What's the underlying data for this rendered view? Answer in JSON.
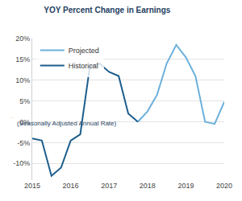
{
  "chart_data": {
    "type": "line",
    "title": "YOY Percent Change in Earnings",
    "subtitle": "(Seasonally Adjusted Annual Rate)",
    "x": [
      2015,
      2015.25,
      2015.5,
      2015.75,
      2016,
      2016.25,
      2016.5,
      2016.75,
      2017,
      2017.25,
      2017.5,
      2017.75,
      2018,
      2018.25,
      2018.5,
      2018.75,
      2019,
      2019.25,
      2019.5,
      2019.75,
      2020
    ],
    "series": [
      {
        "name": "Projected",
        "color": "#6cb0dc",
        "values": [
          null,
          null,
          null,
          null,
          null,
          null,
          null,
          null,
          null,
          null,
          null,
          0,
          2.5,
          6.5,
          14,
          18.5,
          15.5,
          11,
          0,
          -0.5,
          4.8
        ]
      },
      {
        "name": "Historical",
        "color": "#1c5d8c",
        "values": [
          -4,
          -4.5,
          -13,
          -11,
          -4.5,
          -3,
          13.3,
          14,
          12,
          11,
          2,
          0,
          null,
          null,
          null,
          null,
          null,
          null,
          null,
          null,
          null
        ]
      }
    ],
    "xlim": [
      2015,
      2020
    ],
    "xticks": [
      2015,
      2016,
      2017,
      2018,
      2019,
      2020
    ],
    "ylim": [
      -14,
      20
    ],
    "yticks": [
      {
        "value": -10,
        "label": "-10%"
      },
      {
        "value": -5,
        "label": "-5%"
      },
      {
        "value": 0,
        "label": "0%"
      },
      {
        "value": 5,
        "label": "5%"
      },
      {
        "value": 10,
        "label": "10%"
      },
      {
        "value": 15,
        "label": "15%"
      },
      {
        "value": 20,
        "label": "20%"
      }
    ],
    "grid": true,
    "legend": "upper left"
  }
}
